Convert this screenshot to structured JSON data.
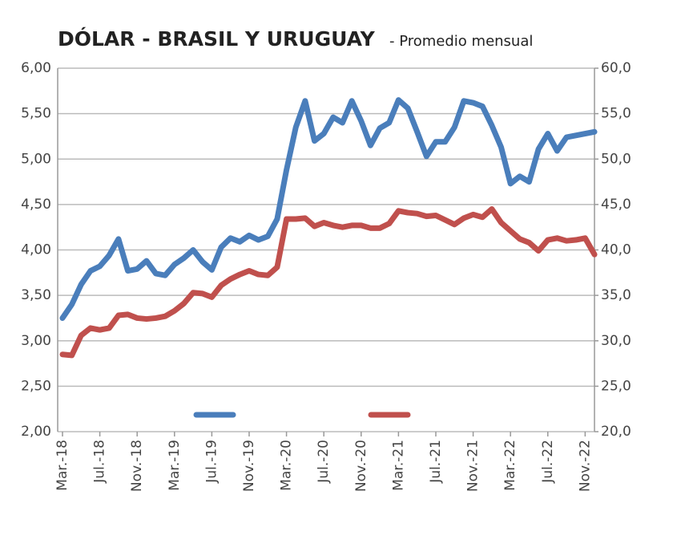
{
  "chart_data": {
    "type": "line",
    "title": "DÓLAR  - BRASIL  Y URUGUAY",
    "subtitle": "-  Promedio mensual",
    "categories": [
      "Mar.-18",
      null,
      null,
      null,
      "Jul.-18",
      null,
      null,
      null,
      "Nov.-18",
      null,
      null,
      null,
      "Mar.-19",
      null,
      null,
      null,
      "Jul.-19",
      null,
      null,
      null,
      "Nov.-19",
      null,
      null,
      null,
      "Mar.-20",
      null,
      null,
      null,
      "Jul.-20",
      null,
      null,
      null,
      "Nov.-20",
      null,
      null,
      null,
      "Mar.-21",
      null,
      null,
      null,
      "Jul.-21",
      null,
      null,
      null,
      "Nov.-21",
      null,
      null,
      null,
      "Mar.-22",
      null,
      null,
      null,
      "Jul.-22",
      null,
      null,
      null,
      "Nov.-22",
      null
    ],
    "series": [
      {
        "color": "#4a7ebb",
        "axis": "y",
        "values": [
          3.25,
          3.4,
          3.62,
          3.77,
          3.82,
          3.94,
          4.12,
          3.77,
          3.79,
          3.88,
          3.74,
          3.72,
          3.84,
          3.91,
          4.0,
          3.87,
          3.78,
          4.03,
          4.13,
          4.09,
          4.16,
          4.11,
          4.15,
          4.34,
          4.88,
          5.35,
          5.64,
          5.2,
          5.28,
          5.46,
          5.4,
          5.64,
          5.42,
          5.15,
          5.34,
          5.4,
          5.65,
          5.56,
          5.3,
          5.03,
          5.19,
          5.19,
          5.35,
          5.64,
          5.62,
          5.58,
          5.37,
          5.13,
          4.73,
          4.81,
          4.75,
          5.11,
          5.28,
          5.09,
          5.24,
          5.26,
          5.28,
          5.3
        ]
      },
      {
        "color": "#c0504d",
        "axis": "y2",
        "values": [
          28.5,
          28.4,
          30.6,
          31.4,
          31.2,
          31.4,
          32.8,
          32.9,
          32.5,
          32.4,
          32.5,
          32.7,
          33.3,
          34.1,
          35.3,
          35.2,
          34.8,
          36.1,
          36.8,
          37.3,
          37.7,
          37.3,
          37.2,
          38.1,
          43.4,
          43.4,
          43.5,
          42.6,
          43.0,
          42.7,
          42.5,
          42.7,
          42.7,
          42.4,
          42.4,
          42.9,
          44.3,
          44.1,
          44.0,
          43.7,
          43.8,
          43.3,
          42.8,
          43.5,
          43.9,
          43.6,
          44.5,
          43.0,
          42.1,
          41.2,
          40.8,
          39.9,
          41.1,
          41.3,
          41.0,
          41.1,
          41.3,
          39.5
        ]
      }
    ],
    "ylim": [
      2,
      6
    ],
    "yticks": [
      {
        "value": 2,
        "label": "2,00"
      },
      {
        "value": 2.5,
        "label": "2,50"
      },
      {
        "value": 3,
        "label": "3,00"
      },
      {
        "value": 3.5,
        "label": "3,50"
      },
      {
        "value": 4,
        "label": "4,00"
      },
      {
        "value": 4.5,
        "label": "4,50"
      },
      {
        "value": 5,
        "label": "5,00"
      },
      {
        "value": 5.5,
        "label": "5,50"
      },
      {
        "value": 6,
        "label": "6,00"
      }
    ],
    "y2lim": [
      20,
      60
    ],
    "y2ticks": [
      {
        "value": 20,
        "label": "20,0"
      },
      {
        "value": 25,
        "label": "25,0"
      },
      {
        "value": 30,
        "label": "30,0"
      },
      {
        "value": 35,
        "label": "35,0"
      },
      {
        "value": 40,
        "label": "40,0"
      },
      {
        "value": 45,
        "label": "45,0"
      },
      {
        "value": 50,
        "label": "50,0"
      },
      {
        "value": 55,
        "label": "55,0"
      },
      {
        "value": 60,
        "label": "60,0"
      }
    ],
    "grid": true
  }
}
